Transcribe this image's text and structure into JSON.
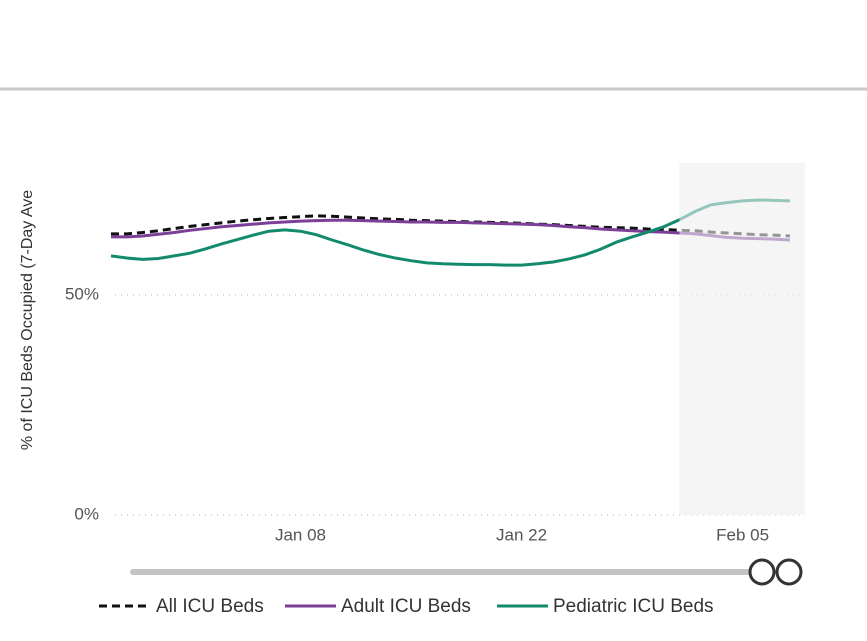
{
  "chart_data": {
    "type": "line",
    "y_label": "% of ICU Beds Occupied (7-Day Ave",
    "categories": [
      null,
      null,
      null,
      null,
      null,
      null,
      null,
      null,
      null,
      null,
      null,
      null,
      "Jan 08",
      null,
      null,
      null,
      null,
      null,
      null,
      null,
      null,
      null,
      null,
      null,
      null,
      null,
      "Jan 22",
      null,
      null,
      null,
      null,
      null,
      null,
      null,
      null,
      null,
      null,
      null,
      null,
      null,
      "Feb 05",
      null,
      null,
      null
    ],
    "series": [
      {
        "name": "All ICU Beds",
        "color": "#111111",
        "dashed": true,
        "values": [
          63.9,
          63.9,
          64.2,
          64.6,
          65.1,
          65.6,
          66.0,
          66.4,
          66.8,
          67.1,
          67.4,
          67.6,
          67.8,
          68.0,
          67.9,
          67.7,
          67.5,
          67.3,
          67.2,
          67.0,
          66.9,
          66.8,
          66.7,
          66.6,
          66.5,
          66.4,
          66.3,
          66.1,
          66.0,
          65.8,
          65.6,
          65.4,
          65.3,
          65.2,
          65.0,
          64.9,
          64.7,
          64.6,
          64.3,
          64.1,
          63.9,
          63.7,
          63.6,
          63.4
        ]
      },
      {
        "name": "Adult ICU Beds",
        "color": "#7b3f98",
        "dashed": false,
        "values": [
          63.2,
          63.2,
          63.4,
          63.8,
          64.2,
          64.7,
          65.1,
          65.5,
          65.8,
          66.1,
          66.4,
          66.6,
          66.8,
          66.9,
          67.0,
          67.0,
          66.9,
          66.8,
          66.7,
          66.6,
          66.6,
          66.5,
          66.5,
          66.4,
          66.3,
          66.2,
          66.1,
          66.0,
          65.8,
          65.5,
          65.3,
          65.0,
          64.8,
          64.6,
          64.4,
          64.3,
          64.1,
          63.9,
          63.5,
          63.1,
          62.9,
          62.8,
          62.7,
          62.5
        ]
      },
      {
        "name": "Pediatric ICU Beds",
        "color": "#138a6e",
        "dashed": false,
        "values": [
          58.9,
          58.4,
          58.1,
          58.3,
          58.9,
          59.5,
          60.5,
          61.6,
          62.6,
          63.6,
          64.5,
          64.8,
          64.5,
          63.7,
          62.5,
          61.4,
          60.2,
          59.2,
          58.4,
          57.8,
          57.3,
          57.1,
          57.0,
          56.9,
          56.9,
          56.8,
          56.8,
          57.1,
          57.5,
          58.2,
          59.1,
          60.4,
          62.0,
          63.2,
          64.3,
          65.5,
          67.1,
          69.0,
          70.5,
          71.0,
          71.4,
          71.6,
          71.5,
          71.4
        ]
      }
    ],
    "ylim": [
      0,
      80
    ],
    "yticks": [
      {
        "value": 0,
        "label": "0%"
      },
      {
        "value": 50,
        "label": "50%"
      }
    ],
    "grid": true,
    "shade_from": 36,
    "legend": "bottom"
  }
}
